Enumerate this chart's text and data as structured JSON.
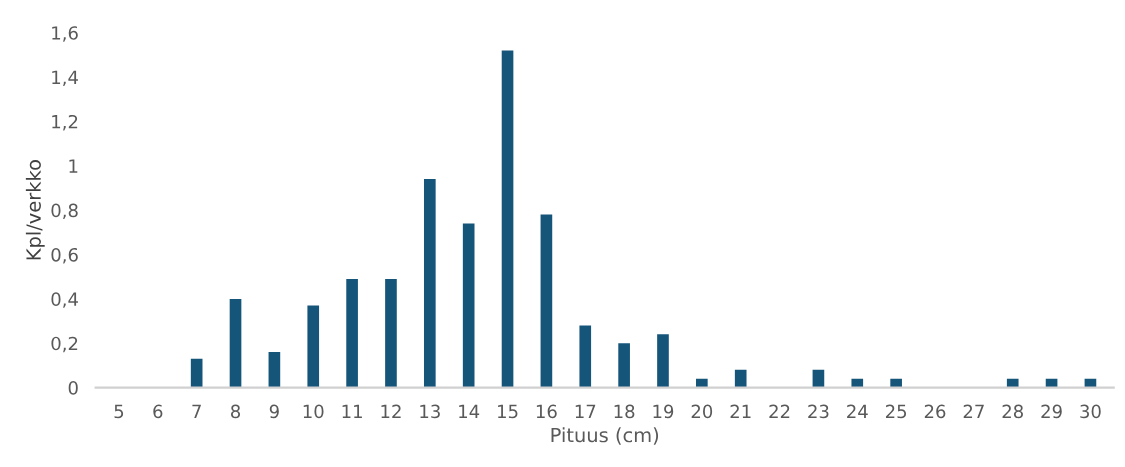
{
  "chart_data": {
    "type": "bar",
    "xlabel": "Pituus (cm)",
    "ylabel": "Kpl/verkko",
    "categories": [
      "5",
      "6",
      "7",
      "8",
      "9",
      "10",
      "11",
      "12",
      "13",
      "14",
      "15",
      "16",
      "17",
      "18",
      "19",
      "20",
      "21",
      "22",
      "23",
      "24",
      "25",
      "26",
      "27",
      "28",
      "29",
      "30"
    ],
    "values": [
      0,
      0,
      0.13,
      0.4,
      0.16,
      0.37,
      0.49,
      0.49,
      0.94,
      0.74,
      1.52,
      0.78,
      0.28,
      0.2,
      0.24,
      0.04,
      0.08,
      0,
      0.08,
      0.04,
      0.04,
      0,
      0,
      0.04,
      0.04,
      0.04
    ],
    "color": "#16557a",
    "ylim": [
      0,
      1.6
    ],
    "yticks": [
      {
        "value": 0,
        "label": "0"
      },
      {
        "value": 0.2,
        "label": "0,2"
      },
      {
        "value": 0.4,
        "label": "0,4"
      },
      {
        "value": 0.6,
        "label": "0,6"
      },
      {
        "value": 0.8,
        "label": "0,8"
      },
      {
        "value": 1,
        "label": "1"
      },
      {
        "value": 1.2,
        "label": "1,2"
      },
      {
        "value": 1.4,
        "label": "1,4"
      },
      {
        "value": 1.6,
        "label": "1,6"
      }
    ],
    "grid": false
  }
}
